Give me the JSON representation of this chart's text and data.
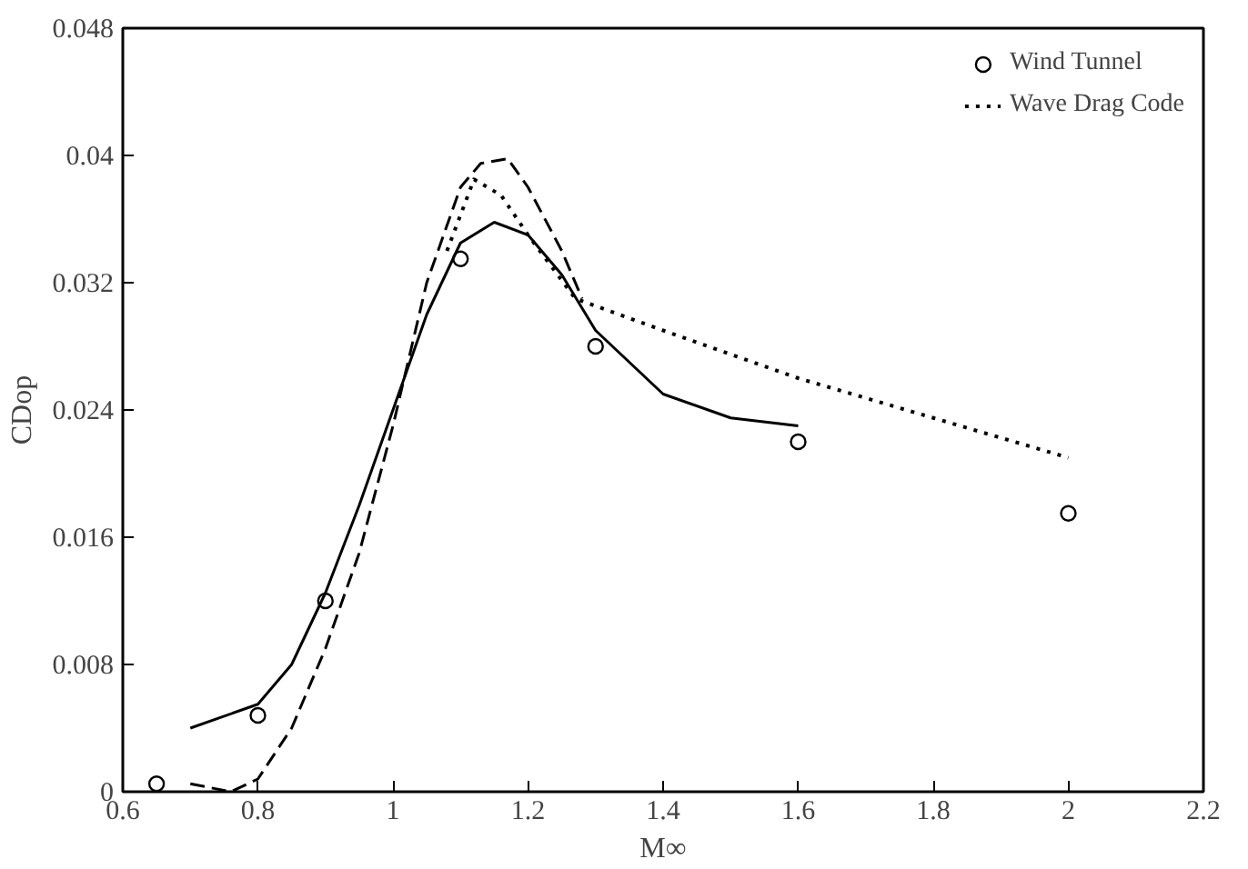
{
  "chart_data": {
    "type": "line",
    "xlabel": "M∞",
    "ylabel": "CDop",
    "xlim": [
      0.6,
      2.2
    ],
    "ylim": [
      0,
      0.048
    ],
    "xticks": [
      0.6,
      0.8,
      1,
      1.2,
      1.4,
      1.6,
      1.8,
      2,
      2.2
    ],
    "yticks": [
      0,
      0.008,
      0.016,
      0.024,
      0.032,
      0.04,
      0.048
    ],
    "grid": false,
    "legend": "top right",
    "series": [
      {
        "name": "Wind Tunnel",
        "type": "scatter",
        "marker": "circle",
        "color": "#000000",
        "x": [
          0.65,
          0.8,
          0.9,
          1.1,
          1.3,
          1.6,
          2.0
        ],
        "values": [
          0.0005,
          0.0048,
          0.012,
          0.0335,
          0.028,
          0.022,
          0.0175
        ]
      },
      {
        "name": "Wave Drag Code",
        "line_style": "dotted",
        "color": "#000000",
        "x": [
          1.08,
          1.12,
          1.16,
          1.2,
          1.27,
          1.4,
          1.6,
          1.8,
          2.0
        ],
        "values": [
          0.034,
          0.0385,
          0.0375,
          0.035,
          0.031,
          0.029,
          0.026,
          0.0235,
          0.021
        ]
      },
      {
        "line_style": "dashed",
        "color": "#000000",
        "x": [
          0.7,
          0.76,
          0.8,
          0.85,
          0.9,
          0.95,
          1.0,
          1.05,
          1.1,
          1.13,
          1.17,
          1.2,
          1.25,
          1.28
        ],
        "values": [
          0.0005,
          0,
          0.0008,
          0.004,
          0.009,
          0.015,
          0.023,
          0.032,
          0.038,
          0.0395,
          0.0398,
          0.038,
          0.034,
          0.031
        ]
      },
      {
        "line_style": "solid",
        "color": "#000000",
        "x": [
          0.7,
          0.8,
          0.85,
          0.9,
          0.95,
          1.0,
          1.05,
          1.1,
          1.15,
          1.2,
          1.25,
          1.3,
          1.4,
          1.5,
          1.6
        ],
        "values": [
          0.004,
          0.0055,
          0.008,
          0.0125,
          0.018,
          0.024,
          0.03,
          0.0345,
          0.0358,
          0.035,
          0.0325,
          0.029,
          0.025,
          0.0235,
          0.023
        ]
      }
    ]
  }
}
